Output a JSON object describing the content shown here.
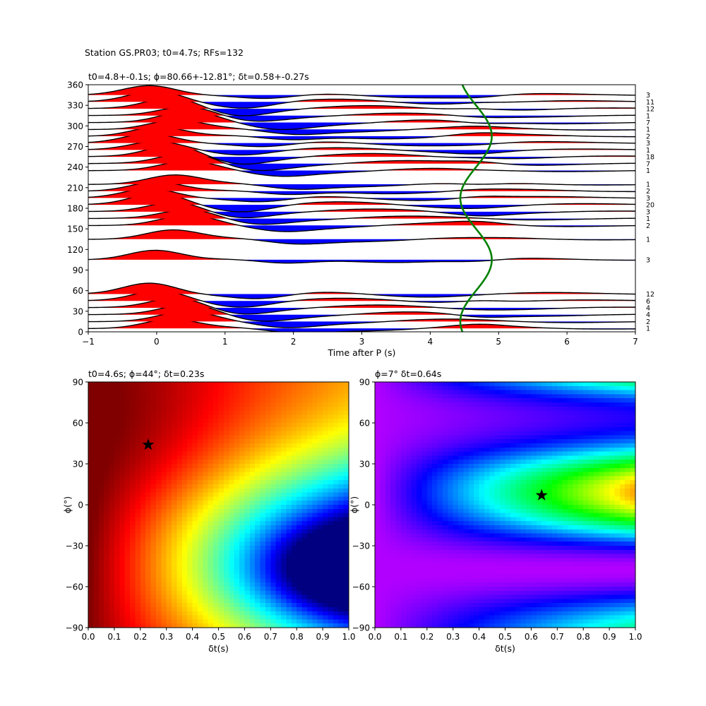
{
  "figure": {
    "suptitle": "Station GS.PR03; t0=4.7s; RFs=132"
  },
  "chart_data": [
    {
      "type": "line",
      "subtype": "wiggle-traces",
      "title": "t0=4.8+-0.1s; ϕ=80.66+-12.81°; δt=0.58+-0.27s",
      "xlabel": "Time after P (s)",
      "ylabel": "",
      "xlim": [
        -1,
        7
      ],
      "ylim": [
        0,
        360
      ],
      "xticks": [
        -1,
        0,
        1,
        2,
        3,
        4,
        5,
        6,
        7
      ],
      "yticks": [
        0,
        30,
        60,
        90,
        120,
        150,
        180,
        210,
        240,
        270,
        300,
        330,
        360
      ],
      "fill_positive": "#ff0000",
      "fill_negative": "#0000ff",
      "trace_color": "#000000",
      "curve_color": "#008000",
      "bin_counts": [
        {
          "baz": 5,
          "count": "1"
        },
        {
          "baz": 15,
          "count": "2"
        },
        {
          "baz": 25,
          "count": "4"
        },
        {
          "baz": 35,
          "count": "4"
        },
        {
          "baz": 45,
          "count": "6"
        },
        {
          "baz": 55,
          "count": "12"
        },
        {
          "baz": 105,
          "count": "3"
        },
        {
          "baz": 135,
          "count": "1"
        },
        {
          "baz": 155,
          "count": "2"
        },
        {
          "baz": 165,
          "count": "1"
        },
        {
          "baz": 175,
          "count": "3"
        },
        {
          "baz": 185,
          "count": "20"
        },
        {
          "baz": 195,
          "count": "3"
        },
        {
          "baz": 205,
          "count": "2"
        },
        {
          "baz": 215,
          "count": "1"
        },
        {
          "baz": 235,
          "count": "1"
        },
        {
          "baz": 245,
          "count": "7"
        },
        {
          "baz": 255,
          "count": "18"
        },
        {
          "baz": 265,
          "count": "1"
        },
        {
          "baz": 275,
          "count": "3"
        },
        {
          "baz": 285,
          "count": "2"
        },
        {
          "baz": 295,
          "count": "1"
        },
        {
          "baz": 305,
          "count": "7"
        },
        {
          "baz": 315,
          "count": "1"
        },
        {
          "baz": 325,
          "count": "12"
        },
        {
          "baz": 335,
          "count": "11"
        },
        {
          "baz": 345,
          "count": "3"
        }
      ]
    },
    {
      "type": "heatmap",
      "title": "t0=4.6s; ϕ=44°; δt=0.23s",
      "xlabel": "δt(s)",
      "ylabel": "ϕ(°)",
      "xlim": [
        0,
        1
      ],
      "ylim": [
        -90,
        90
      ],
      "xticks": [
        0.0,
        0.1,
        0.2,
        0.3,
        0.4,
        0.5,
        0.6,
        0.7,
        0.8,
        0.9,
        1.0
      ],
      "yticks": [
        -90,
        -60,
        -30,
        0,
        30,
        60,
        90
      ],
      "colormap": "jet-like",
      "best": {
        "dt": 0.23,
        "phi": 44
      }
    },
    {
      "type": "heatmap",
      "title": "ϕ=7° δt=0.64s",
      "xlabel": "δt(s)",
      "ylabel": "ϕ(°)",
      "xlim": [
        0,
        1
      ],
      "ylim": [
        -90,
        90
      ],
      "xticks": [
        0.0,
        0.1,
        0.2,
        0.3,
        0.4,
        0.5,
        0.6,
        0.7,
        0.8,
        0.9,
        1.0
      ],
      "yticks": [
        -90,
        -60,
        -30,
        0,
        30,
        60,
        90
      ],
      "colormap": "hsv-like",
      "best": {
        "dt": 0.64,
        "phi": 7
      }
    }
  ]
}
